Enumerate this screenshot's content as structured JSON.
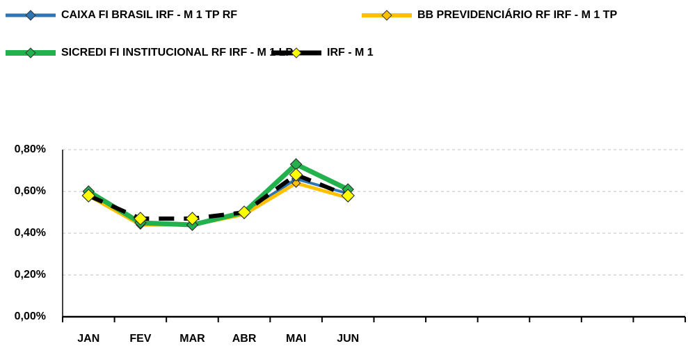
{
  "chart_data": {
    "type": "line",
    "categories": [
      "JAN",
      "FEV",
      "MAR",
      "ABR",
      "MAI",
      "JUN",
      null,
      null,
      null,
      null,
      null,
      null
    ],
    "series": [
      {
        "name": "CAIXA FI BRASIL IRF - M 1 TP RF",
        "color": "#2e75b6",
        "marker_color": "#2e75b6",
        "values": [
          0.58,
          0.44,
          0.44,
          0.5,
          0.66,
          0.59,
          null,
          null,
          null,
          null,
          null,
          null
        ]
      },
      {
        "name": "BB PREVIDENCIÁRIO RF IRF - M 1 TP",
        "color": "#ffc000",
        "marker_color": "#ffc000",
        "values": [
          0.58,
          0.44,
          0.44,
          0.49,
          0.64,
          0.57,
          null,
          null,
          null,
          null,
          null,
          null
        ]
      },
      {
        "name": "SICREDI FI INSTITUCIONAL RF IRF - M 1 LP",
        "color": "#22b14c",
        "marker_color": "#22b14c",
        "values": [
          0.6,
          0.45,
          0.44,
          0.5,
          0.73,
          0.61,
          null,
          null,
          null,
          null,
          null,
          null
        ]
      },
      {
        "name": "IRF - M 1",
        "color": "#000000",
        "marker_color": "#ffff00",
        "dashed": true,
        "values": [
          0.58,
          0.47,
          0.47,
          0.5,
          0.68,
          0.58,
          null,
          null,
          null,
          null,
          null,
          null
        ]
      }
    ],
    "ylim": [
      0,
      0.8
    ],
    "yticks": [
      {
        "value": 0,
        "label": "0,00%"
      },
      {
        "value": 0.2,
        "label": "0,20%"
      },
      {
        "value": 0.4,
        "label": "0,40%"
      },
      {
        "value": 0.6,
        "label": "0,60%"
      },
      {
        "value": 0.8,
        "label": "0,80%"
      }
    ],
    "grid": true,
    "legend": "top"
  }
}
